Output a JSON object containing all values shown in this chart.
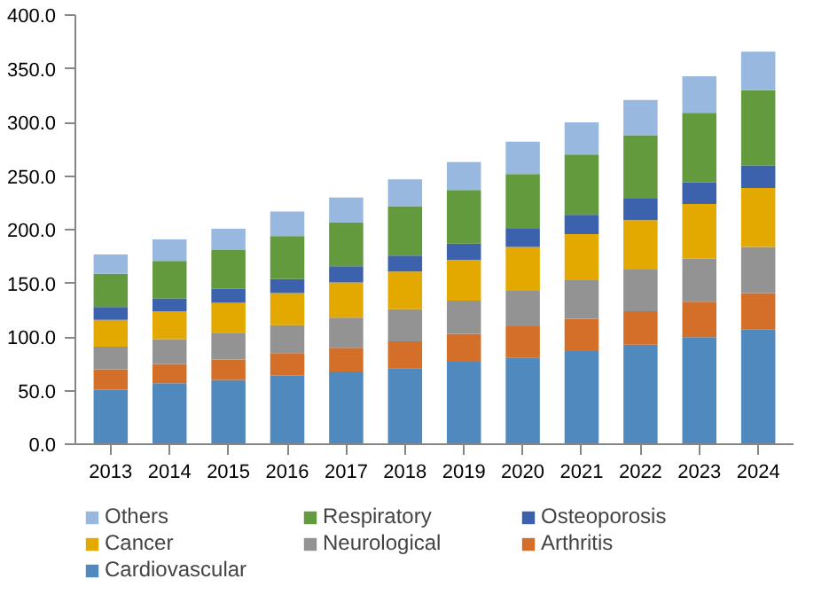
{
  "chart_data": {
    "type": "bar",
    "stacked": true,
    "categories": [
      "2013",
      "2014",
      "2015",
      "2016",
      "2017",
      "2018",
      "2019",
      "2020",
      "2021",
      "2022",
      "2023",
      "2024"
    ],
    "series": [
      {
        "name": "Cardiovascular",
        "color": "#4f89bd",
        "values": [
          51,
          57,
          60,
          64,
          68,
          71,
          77,
          81,
          87,
          93,
          100,
          107
        ]
      },
      {
        "name": "Arthritis",
        "color": "#d46f2a",
        "values": [
          19,
          18,
          19,
          21,
          22,
          25,
          26,
          29,
          30,
          31,
          33,
          34
        ]
      },
      {
        "name": "Neurological",
        "color": "#939393",
        "values": [
          21,
          23,
          25,
          26,
          28,
          30,
          31,
          33,
          36,
          39,
          40,
          43
        ]
      },
      {
        "name": "Cancer",
        "color": "#e3a900",
        "values": [
          25,
          26,
          28,
          30,
          33,
          35,
          38,
          41,
          43,
          46,
          51,
          55
        ]
      },
      {
        "name": "Osteoporosis",
        "color": "#3c62ad",
        "values": [
          12,
          12,
          13,
          13,
          15,
          15,
          15,
          17,
          18,
          20,
          20,
          21
        ]
      },
      {
        "name": "Respiratory",
        "color": "#629a3d",
        "values": [
          31,
          35,
          36,
          40,
          41,
          46,
          50,
          51,
          56,
          59,
          65,
          70
        ]
      },
      {
        "name": "Others",
        "color": "#99b8e0",
        "values": [
          18,
          20,
          20,
          23,
          23,
          25,
          26,
          30,
          30,
          33,
          34,
          36
        ]
      }
    ],
    "ylim": [
      0,
      400
    ],
    "yticks": [
      {
        "value": 0,
        "label": "0.0"
      },
      {
        "value": 50,
        "label": "50.0"
      },
      {
        "value": 100,
        "label": "100.0"
      },
      {
        "value": 150,
        "label": "150.0"
      },
      {
        "value": 200,
        "label": "200.0"
      },
      {
        "value": 250,
        "label": "250.0"
      },
      {
        "value": 300,
        "label": "300.0"
      },
      {
        "value": 350,
        "label": "350.0"
      },
      {
        "value": 400,
        "label": "400.0"
      }
    ],
    "grid": false,
    "legend": "bottom"
  }
}
